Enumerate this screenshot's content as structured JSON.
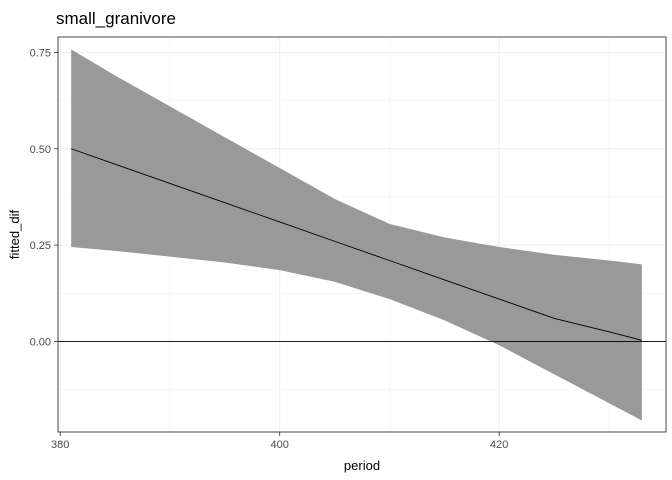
{
  "chart_data": {
    "type": "line",
    "title": "small_granivore",
    "xlabel": "period",
    "ylabel": "fitted_dif",
    "xlim": [
      379.8,
      435.2
    ],
    "ylim": [
      -0.235,
      0.79
    ],
    "x_ticks": [
      380,
      400,
      420
    ],
    "x_tick_labels": [
      "380",
      "400",
      "420"
    ],
    "y_ticks": [
      0.0,
      0.25,
      0.5,
      0.75
    ],
    "y_tick_labels": [
      "0.00",
      "0.25",
      "0.50",
      "0.75"
    ],
    "grid": true,
    "hline": 0,
    "colors": {
      "ribbon": "#999999",
      "line": "#000000",
      "hline": "#000000"
    },
    "series": [
      {
        "x": [
          381,
          385,
          390,
          395,
          400,
          405,
          410,
          415,
          420,
          425,
          430,
          433
        ],
        "fit": [
          0.5,
          0.46,
          0.41,
          0.36,
          0.31,
          0.26,
          0.21,
          0.16,
          0.11,
          0.06,
          0.025,
          0.003
        ],
        "lower": [
          0.245,
          0.235,
          0.22,
          0.205,
          0.185,
          0.155,
          0.11,
          0.055,
          -0.01,
          -0.085,
          -0.16,
          -0.205
        ],
        "upper": [
          0.758,
          0.69,
          0.61,
          0.53,
          0.45,
          0.37,
          0.305,
          0.27,
          0.245,
          0.225,
          0.21,
          0.2
        ]
      }
    ]
  }
}
